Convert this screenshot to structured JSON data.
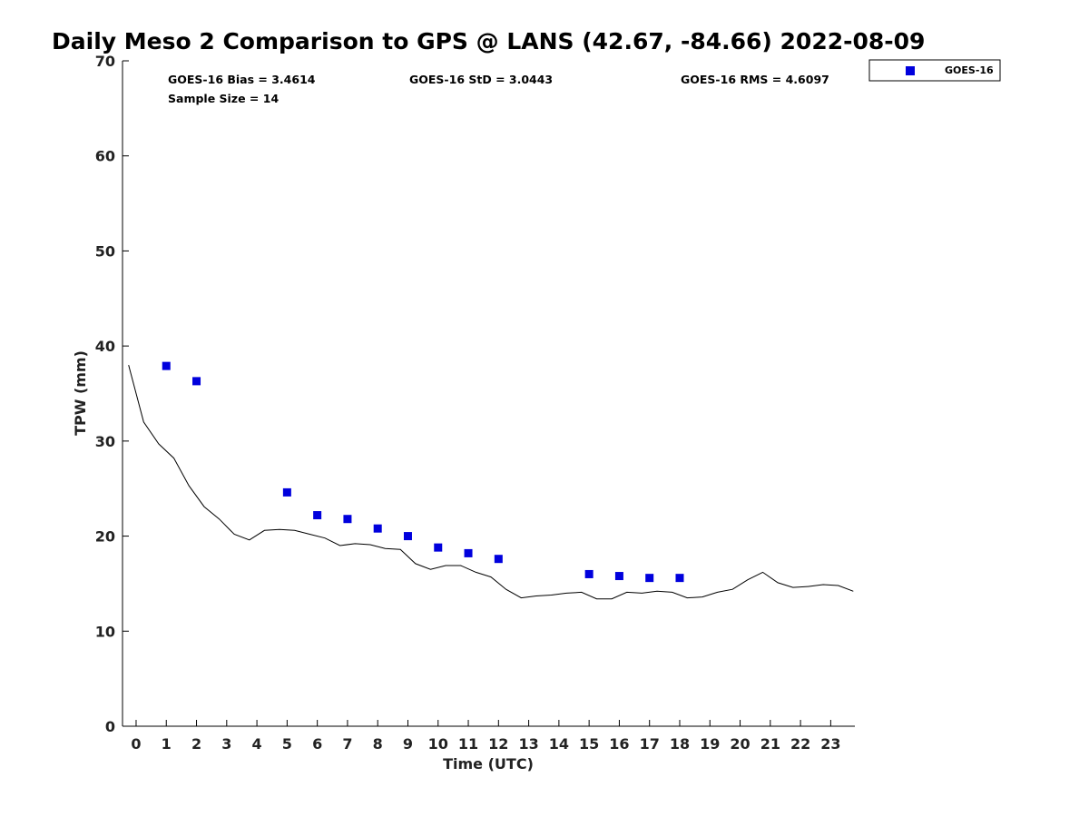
{
  "chart_data": {
    "type": "scatter",
    "title": "Daily Meso 2 Comparison to GPS @ LANS (42.67, -84.66) 2022-08-09",
    "xlabel": "Time (UTC)",
    "ylabel": "TPW (mm)",
    "xlim": [
      -0.45,
      23.8
    ],
    "ylim": [
      0,
      70
    ],
    "x_ticks": [
      0,
      1,
      2,
      3,
      4,
      5,
      6,
      7,
      8,
      9,
      10,
      11,
      12,
      13,
      14,
      15,
      16,
      17,
      18,
      19,
      20,
      21,
      22,
      23
    ],
    "x_tick_labels": [
      "0",
      "1",
      "2",
      "3",
      "4",
      "5",
      "6",
      "7",
      "8",
      "9",
      "10",
      "11",
      "12",
      "13",
      "14",
      "15",
      "16",
      "17",
      "18",
      "19",
      "20",
      "21",
      "22",
      "23"
    ],
    "y_ticks": [
      0,
      10,
      20,
      30,
      40,
      50,
      60,
      70
    ],
    "y_tick_labels": [
      "0",
      "10",
      "20",
      "30",
      "40",
      "50",
      "60",
      "70"
    ],
    "grid": false,
    "legend_position": "top-right, outside plot",
    "stats": {
      "bias": "GOES-16 Bias = 3.4614",
      "std": "GOES-16 StD = 3.0443",
      "rms": "GOES-16 RMS = 4.6097",
      "sample": "Sample Size = 14"
    },
    "series": [
      {
        "name": "GOES-16",
        "kind": "scatter",
        "marker": "square",
        "color": "#0000dd",
        "x": [
          1,
          2,
          5,
          6,
          7,
          8,
          9,
          10,
          11,
          12,
          15,
          16,
          17,
          18
        ],
        "y": [
          37.9,
          36.3,
          24.6,
          22.2,
          21.8,
          20.8,
          20.0,
          18.8,
          18.2,
          17.6,
          16.0,
          15.8,
          15.6,
          15.6
        ]
      },
      {
        "kind": "line",
        "color": "#000000",
        "x": [
          -0.25,
          0.25,
          0.75,
          1.25,
          1.75,
          2.25,
          2.75,
          3.25,
          3.75,
          4.25,
          4.75,
          5.25,
          5.75,
          6.25,
          6.75,
          7.25,
          7.75,
          8.25,
          8.75,
          9.25,
          9.75,
          10.25,
          10.75,
          11.25,
          11.75,
          12.25,
          12.75,
          13.25,
          13.75,
          14.25,
          14.75,
          15.25,
          15.75,
          16.25,
          16.75,
          17.25,
          17.75,
          18.25,
          18.75,
          19.25,
          19.75,
          20.25,
          20.75,
          21.25,
          21.75,
          22.25,
          22.75,
          23.25,
          23.75
        ],
        "y": [
          38.0,
          32.0,
          29.7,
          28.2,
          25.3,
          23.1,
          21.8,
          20.2,
          19.6,
          20.6,
          20.7,
          20.6,
          20.2,
          19.8,
          19.0,
          19.2,
          19.1,
          18.7,
          18.6,
          17.1,
          16.5,
          16.9,
          16.9,
          16.2,
          15.7,
          14.4,
          13.5,
          13.7,
          13.8,
          14.0,
          14.1,
          13.4,
          13.4,
          14.1,
          14.0,
          14.2,
          14.1,
          13.5,
          13.6,
          14.1,
          14.4,
          15.4,
          16.2,
          15.1,
          14.6,
          14.7,
          14.9,
          14.8,
          14.2
        ]
      }
    ]
  }
}
